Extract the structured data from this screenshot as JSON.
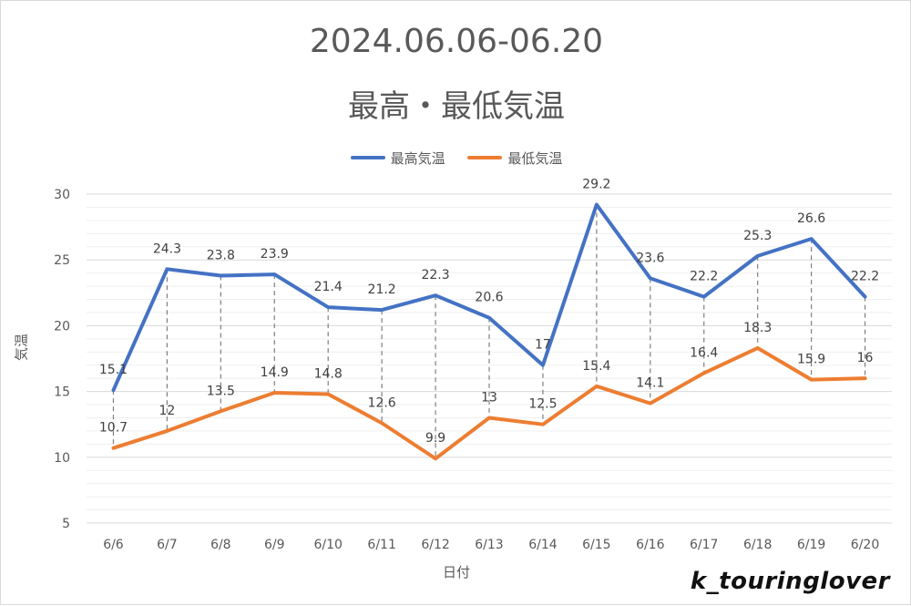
{
  "title": "2024.06.06-06.20",
  "subtitle": "最高・最低気温",
  "watermark": "k_touringlover",
  "colors": {
    "high": "#4472C4",
    "low": "#ED7D31",
    "grid": "#d9d9d9",
    "drop": "#7f7f7f"
  },
  "chart_data": {
    "type": "line",
    "categories": [
      "6/6",
      "6/7",
      "6/8",
      "6/9",
      "6/10",
      "6/11",
      "6/12",
      "6/13",
      "6/14",
      "6/15",
      "6/16",
      "6/17",
      "6/18",
      "6/19",
      "6/20"
    ],
    "series": [
      {
        "name": "最高気温",
        "values": [
          15.1,
          24.3,
          23.8,
          23.9,
          21.4,
          21.2,
          22.3,
          20.6,
          17,
          29.2,
          23.6,
          22.2,
          25.3,
          26.6,
          22.2
        ]
      },
      {
        "name": "最低気温",
        "values": [
          10.7,
          12,
          13.5,
          14.9,
          14.8,
          12.6,
          9.9,
          13,
          12.5,
          15.4,
          14.1,
          16.4,
          18.3,
          15.9,
          16
        ]
      }
    ],
    "xlabel": "日付",
    "ylabel": "気温",
    "ylim": [
      5,
      30
    ],
    "yticks": [
      5,
      10,
      15,
      20,
      25,
      30
    ],
    "grid": true,
    "drop_lines": true,
    "legend": "top-center"
  }
}
